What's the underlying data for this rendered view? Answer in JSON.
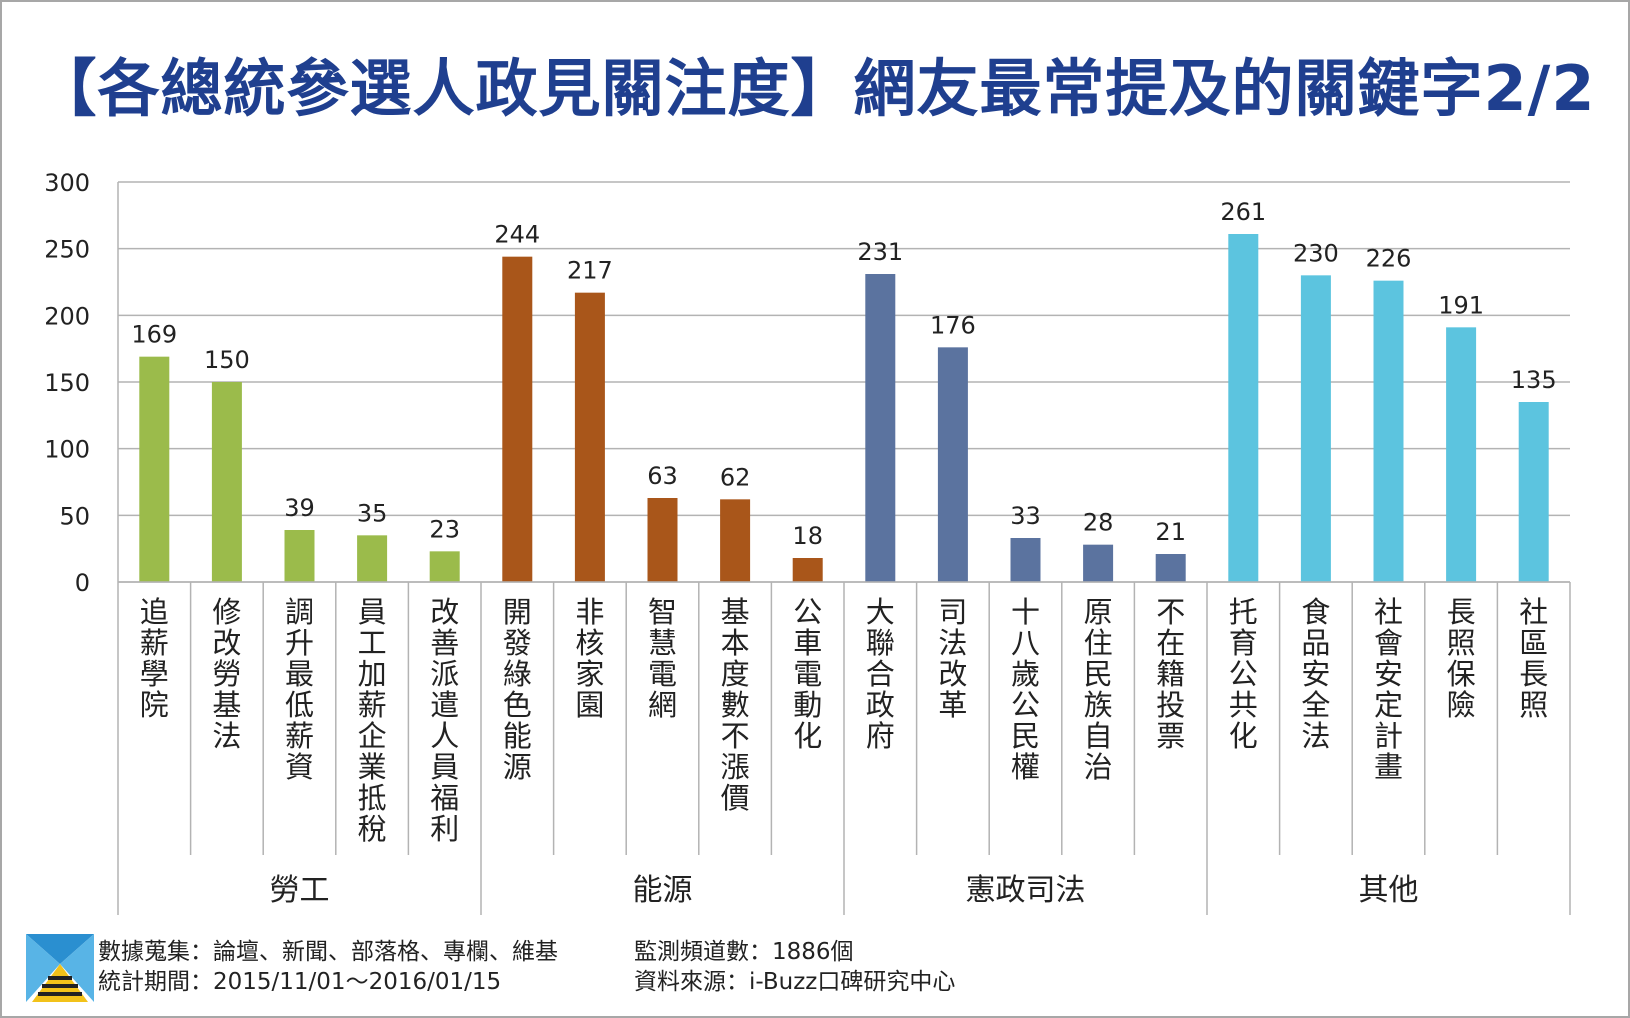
{
  "title": "【各總統參選人政見關注度】網友最常提及的關鍵字2/2",
  "colors": {
    "title": "#1f3f8f",
    "grid": "#b3b3b3",
    "group_colors": [
      "#9bbb4b",
      "#a9561a",
      "#5b739f",
      "#5cc4df"
    ]
  },
  "chart_data": {
    "type": "bar",
    "title": "【各總統參選人政見關注度】網友最常提及的關鍵字2/2",
    "ylim": [
      0,
      300
    ],
    "yticks": [
      "0",
      "50",
      "100",
      "150",
      "200",
      "250",
      "300"
    ],
    "grid": true,
    "legend": "none",
    "groups": [
      {
        "name": "勞工",
        "categories": [
          "追薪學院",
          "修改勞基法",
          "調升最低薪資",
          "員工加薪企業抵稅",
          "改善派遣人員福利"
        ],
        "values": [
          169,
          150,
          39,
          35,
          23
        ]
      },
      {
        "name": "能源",
        "categories": [
          "開發綠色能源",
          "非核家園",
          "智慧電網",
          "基本度數不漲價",
          "公車電動化"
        ],
        "values": [
          244,
          217,
          63,
          62,
          18
        ]
      },
      {
        "name": "憲政司法",
        "categories": [
          "大聯合政府",
          "司法改革",
          "十八歲公民權",
          "原住民族自治",
          "不在籍投票"
        ],
        "values": [
          231,
          176,
          33,
          28,
          21
        ]
      },
      {
        "name": "其他",
        "categories": [
          "托育公共化",
          "食品安全法",
          "社會安定計畫",
          "長照保險",
          "社區長照"
        ],
        "values": [
          261,
          230,
          226,
          191,
          135
        ]
      }
    ]
  },
  "footer": {
    "line1_left": "數據蒐集：論壇、新聞、部落格、專欄、維基",
    "line2_left": "統計期間：2015/11/01～2016/01/15",
    "line1_right": "監測頻道數：1886個",
    "line2_right": "資料來源：i-Buzz口碑研究中心"
  }
}
